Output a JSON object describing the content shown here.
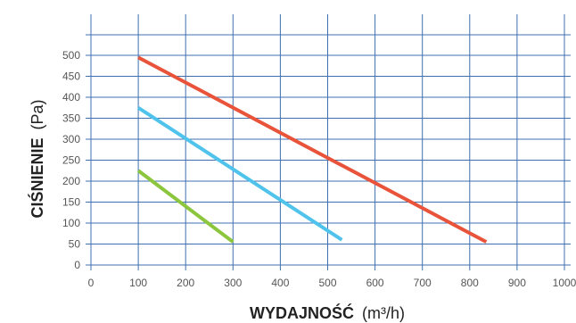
{
  "chart_data": {
    "type": "line",
    "xlabel_bold": "WYDAJNOŚĆ",
    "xlabel_unit": "(m³/h)",
    "ylabel_bold": "CIŚNIENIE",
    "ylabel_unit": "(Pa)",
    "xlim": [
      0,
      1000
    ],
    "ylim": [
      0,
      500
    ],
    "x_ticks": [
      "0",
      "100",
      "200",
      "300",
      "400",
      "500",
      "600",
      "700",
      "800",
      "900",
      "1000"
    ],
    "y_ticks": [
      "0",
      "50",
      "100",
      "150",
      "200",
      "250",
      "300",
      "350",
      "400",
      "450",
      "500"
    ],
    "grid": true,
    "series": [
      {
        "color": "#e8533a",
        "x": [
          100,
          835
        ],
        "y": [
          495,
          55
        ]
      },
      {
        "color": "#4fc3ec",
        "x": [
          100,
          530
        ],
        "y": [
          375,
          60
        ]
      },
      {
        "color": "#8cc63f",
        "x": [
          100,
          300
        ],
        "y": [
          225,
          55
        ]
      }
    ]
  }
}
